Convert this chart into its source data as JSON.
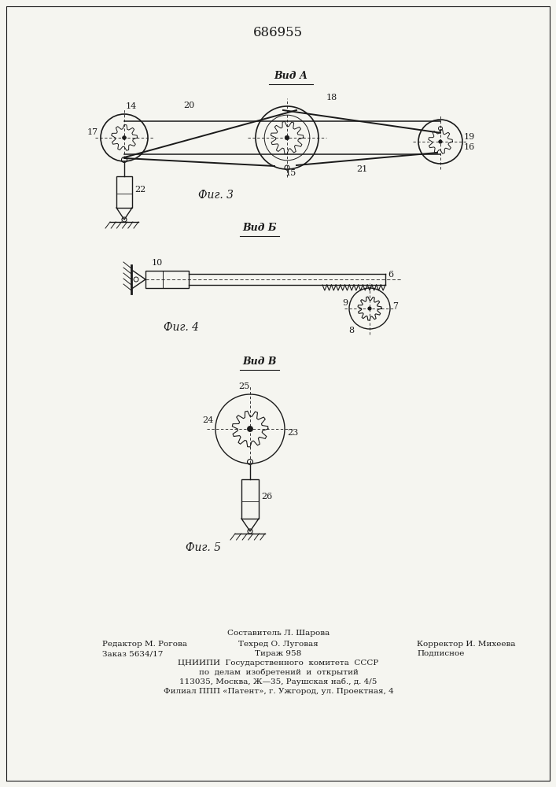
{
  "title_text": "686955",
  "bg_color": "#f5f5f0",
  "line_color": "#1a1a1a",
  "fig3_label": "Фиг. 3",
  "fig4_label": "Фиг. 4",
  "fig5_label": "Фиг. 5",
  "vid_a_label": "Вид А",
  "vid_b_label": "Вид Б",
  "vid_v_label": "Вид В",
  "footer_col1": [
    "Редактор М. Рогова",
    "Заказ 5634/17"
  ],
  "footer_col2_top": "Составитель Л. Шарова",
  "footer_col2": [
    "Техред О. Луговая",
    "Тираж 958"
  ],
  "footer_col3": [
    "Корректор И. Михеева",
    "Подписное"
  ],
  "footer_center": [
    "ЦНИИПИ  Государственного  комитета  СССР",
    "по  делам  изобретений  и  открытий",
    "113035, Москва, Ж—35, Раушская наб., д. 4/5",
    "Филиал ППП «Патент», г. Ужгород, ул. Проектная, 4"
  ]
}
